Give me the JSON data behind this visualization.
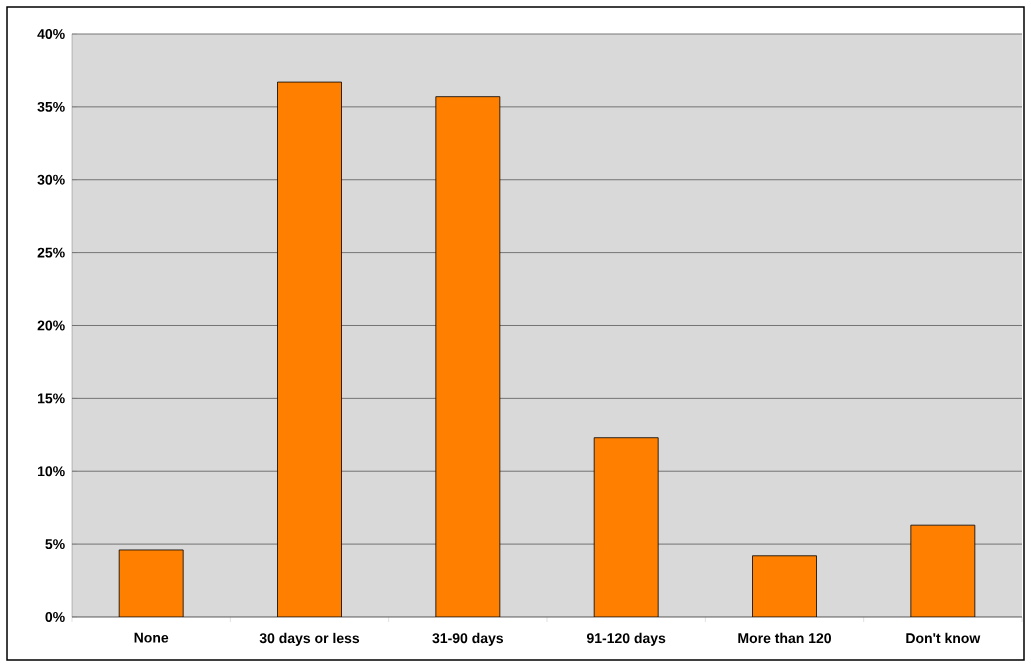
{
  "chart_data": {
    "type": "bar",
    "categories": [
      "None",
      "30 days or less",
      "31-90 days",
      "91-120 days",
      "More than 120",
      "Don't know"
    ],
    "values": [
      4.6,
      36.7,
      35.7,
      12.3,
      4.2,
      6.3
    ],
    "color": "#ff8000",
    "ylim": [
      0,
      40
    ],
    "yticks": [
      {
        "value": 0,
        "label": "0%"
      },
      {
        "value": 5,
        "label": "5%"
      },
      {
        "value": 10,
        "label": "10%"
      },
      {
        "value": 15,
        "label": "15%"
      },
      {
        "value": 20,
        "label": "20%"
      },
      {
        "value": 25,
        "label": "25%"
      },
      {
        "value": 30,
        "label": "30%"
      },
      {
        "value": 35,
        "label": "35%"
      },
      {
        "value": 40,
        "label": "40%"
      }
    ],
    "grid": "y"
  }
}
